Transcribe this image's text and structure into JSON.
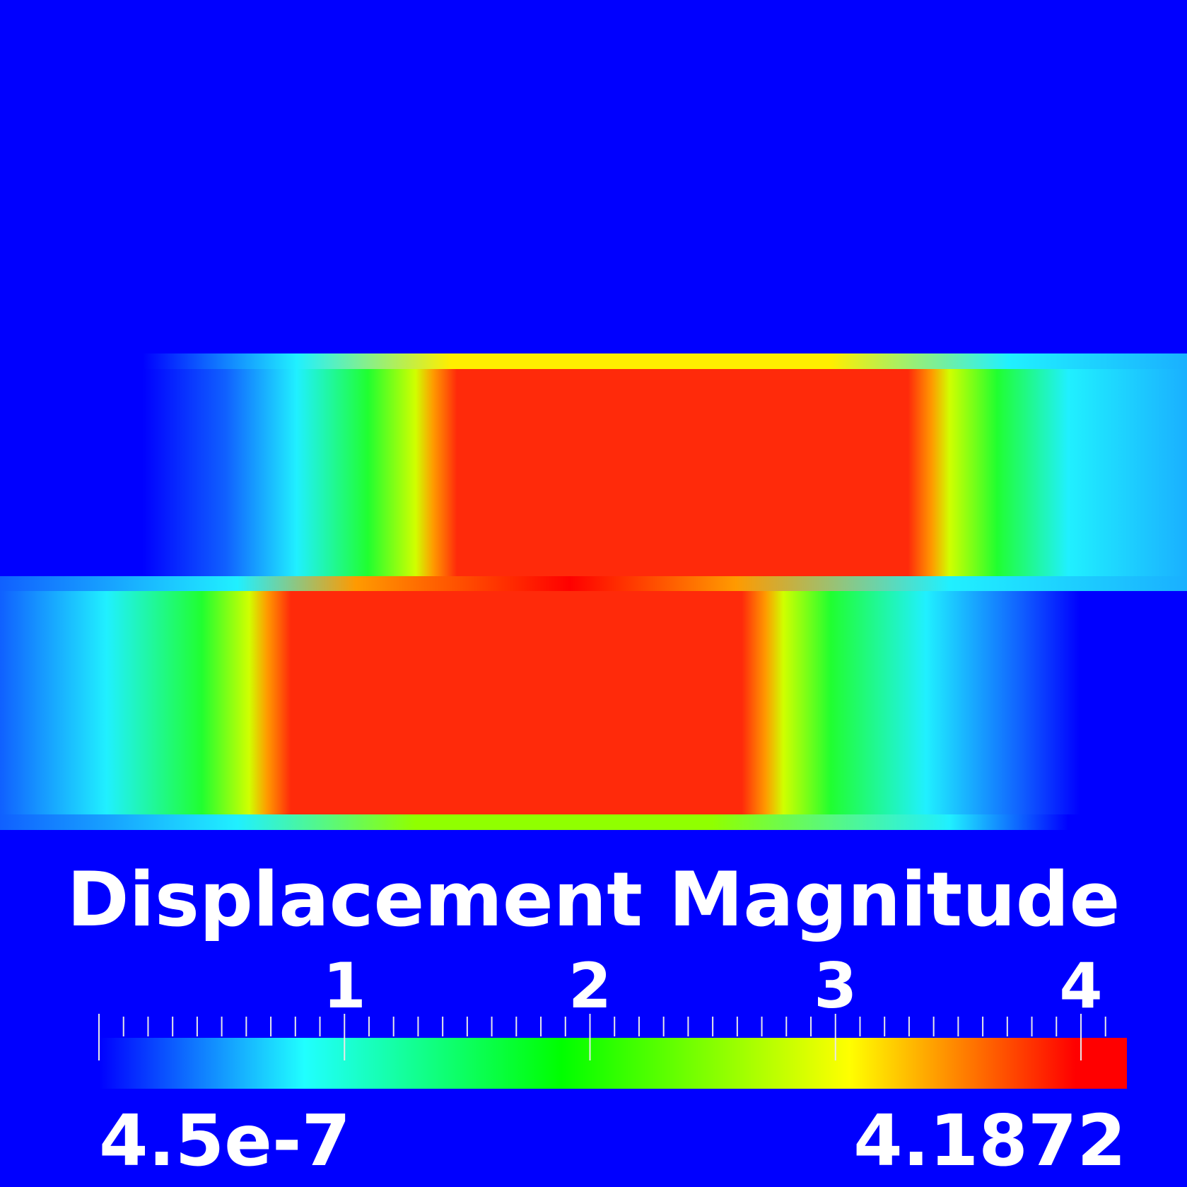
{
  "legend": {
    "title": "Displacement Magnitude",
    "min_label": "4.5e-7",
    "max_label": "4.1872",
    "range": [
      4.5e-07,
      4.1872
    ],
    "major_ticks": [
      "1",
      "2",
      "3",
      "4"
    ],
    "colormap": [
      "#0000ff",
      "#20ffff",
      "#00ff00",
      "#ffff00",
      "#ff0000"
    ]
  },
  "field": {
    "background_color": "#0000ff",
    "peak_color": "#ff2a0a"
  }
}
